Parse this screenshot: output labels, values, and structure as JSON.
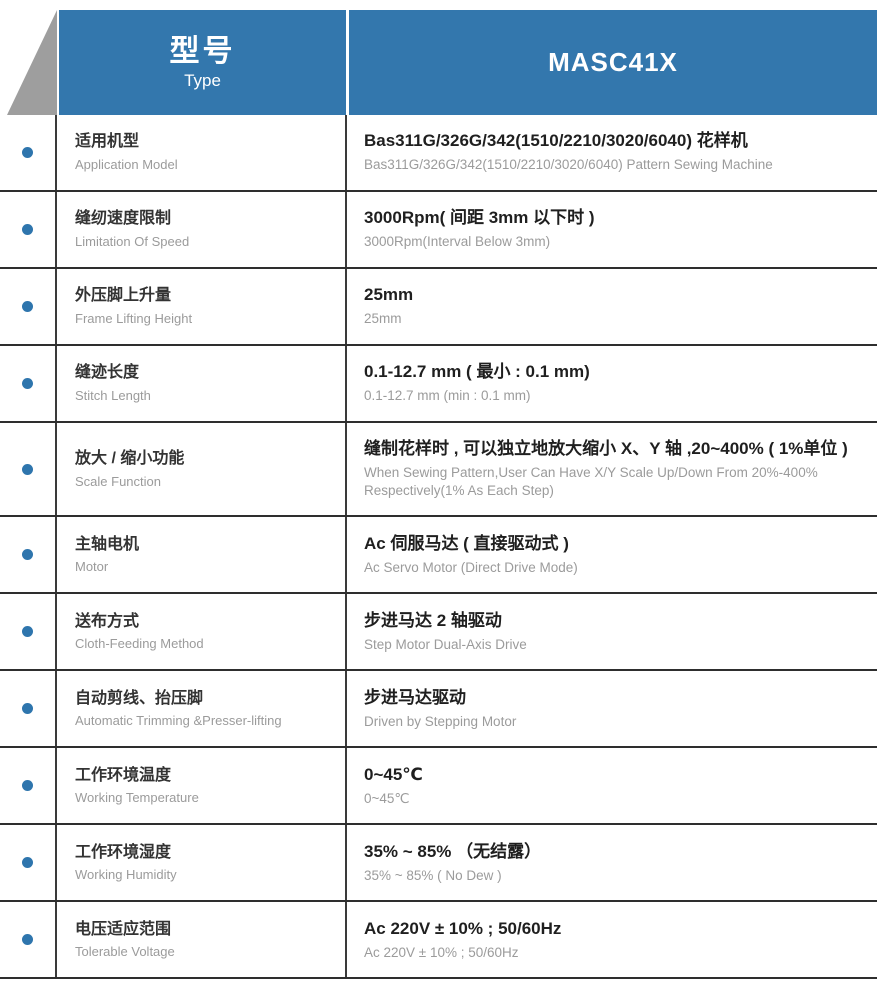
{
  "header": {
    "type_cn": "型号",
    "type_en": "Type",
    "model": "MASC41X"
  },
  "colors": {
    "header_blue": "#3377ad",
    "bullet_blue": "#2e75ad",
    "triangle_gray": "#9e9e9e",
    "divider_dark": "#2e2e2e",
    "label_dark": "#333333",
    "sub_gray": "#9b9b9b"
  },
  "icons": {
    "bullet": "bullet-dot"
  },
  "spec_rows": [
    {
      "label_cn": "适用机型",
      "label_en": "Application Model",
      "value_cn": "Bas311G/326G/342(1510/2210/3020/6040) 花样机",
      "value_en": "Bas311G/326G/342(1510/2210/3020/6040) Pattern Sewing Machine"
    },
    {
      "label_cn": "缝纫速度限制",
      "label_en": "Limitation Of Speed",
      "value_cn": "3000Rpm( 间距 3mm 以下时 )",
      "value_en": "3000Rpm(Interval Below 3mm)"
    },
    {
      "label_cn": "外压脚上升量",
      "label_en": "Frame Lifting Height",
      "value_cn": "25mm",
      "value_en": "25mm"
    },
    {
      "label_cn": "缝迹长度",
      "label_en": "Stitch Length",
      "value_cn": "0.1-12.7 mm ( 最小 : 0.1 mm)",
      "value_en": "0.1-12.7 mm (min : 0.1 mm)"
    },
    {
      "label_cn": "放大 / 缩小功能",
      "label_en": "Scale Function",
      "value_cn": "缝制花样时 , 可以独立地放大缩小 X、Y 轴 ,20~400% ( 1%单位 )",
      "value_en": "When Sewing Pattern,User Can Have X/Y Scale Up/Down From 20%-400% Respectively(1% As Each Step)"
    },
    {
      "label_cn": "主轴电机",
      "label_en": "Motor",
      "value_cn": "Ac 伺服马达 ( 直接驱动式 )",
      "value_en": "Ac Servo Motor (Direct Drive Mode)"
    },
    {
      "label_cn": "送布方式",
      "label_en": "Cloth-Feeding Method",
      "value_cn": "步进马达 2 轴驱动",
      "value_en": "Step Motor Dual-Axis Drive"
    },
    {
      "label_cn": "自动剪线、抬压脚",
      "label_en": "Automatic Trimming &Presser-lifting",
      "value_cn": "步进马达驱动",
      "value_en": "Driven by Stepping Motor"
    },
    {
      "label_cn": "工作环境温度",
      "label_en": "Working Temperature",
      "value_cn": "0~45℃",
      "value_en": "0~45℃"
    },
    {
      "label_cn": "工作环境湿度",
      "label_en": "Working Humidity",
      "value_cn": "35% ~ 85% （无结露）",
      "value_en": "35% ~ 85% ( No Dew )"
    },
    {
      "label_cn": "电压适应范围",
      "label_en": "Tolerable Voltage",
      "value_cn": "Ac 220V ± 10% ; 50/60Hz",
      "value_en": "Ac 220V ± 10% ; 50/60Hz"
    }
  ]
}
